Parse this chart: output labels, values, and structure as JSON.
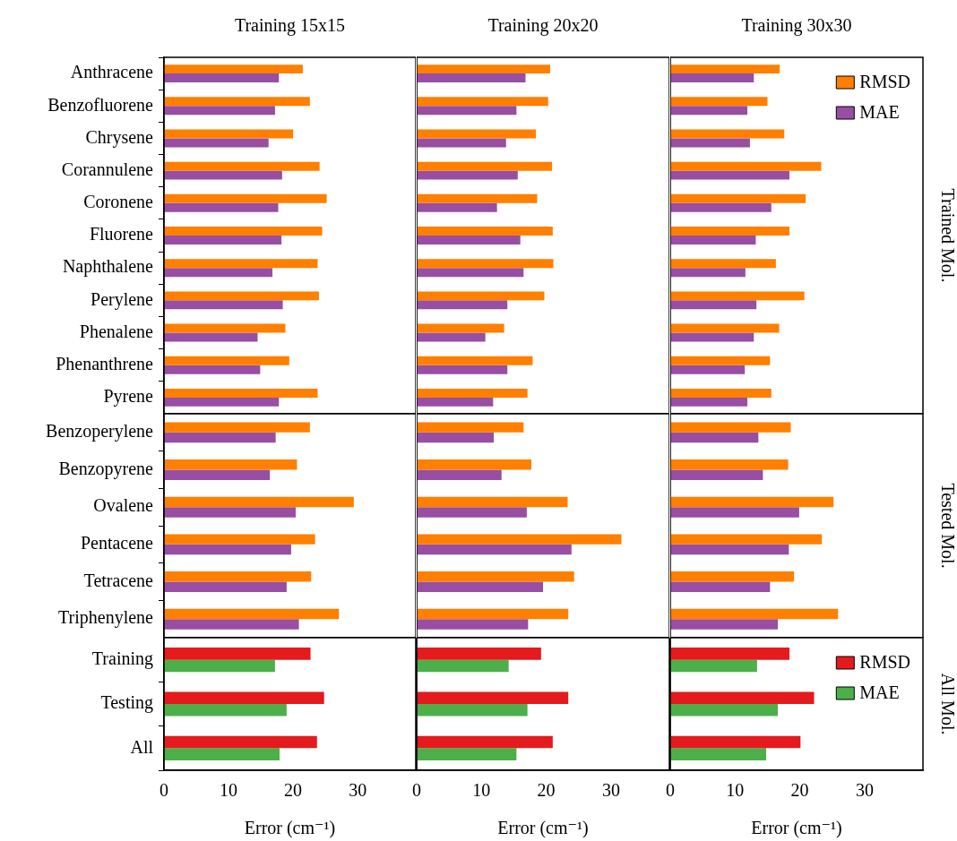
{
  "chart_data": [
    {
      "type": "bar",
      "orientation": "horizontal",
      "title": "Training 15x15",
      "categories": [
        "Anthracene",
        "Benzofluorene",
        "Chrysene",
        "Corannulene",
        "Coronene",
        "Fluorene",
        "Naphthalene",
        "Perylene",
        "Phenalene",
        "Phenanthrene",
        "Pyrene"
      ],
      "series": [
        {
          "color": "#ff7f00",
          "values": [
            21.5,
            22.6,
            20.0,
            24.1,
            25.2,
            24.5,
            23.8,
            24.0,
            18.8,
            19.4,
            23.8
          ]
        },
        {
          "color": "#984ea3",
          "values": [
            17.8,
            17.2,
            16.2,
            18.3,
            17.7,
            18.2,
            16.8,
            18.4,
            14.5,
            14.9,
            17.8
          ]
        }
      ],
      "xlim": [
        0,
        39
      ],
      "xticks": [
        0,
        10,
        20,
        30
      ],
      "tick_labels": "y"
    },
    {
      "type": "bar",
      "orientation": "horizontal",
      "title": "Training 20x20",
      "categories": [
        null,
        null,
        null,
        null,
        null,
        null,
        null,
        null,
        null,
        null,
        null
      ],
      "series": [
        {
          "color": "#ff7f00",
          "values": [
            20.6,
            20.3,
            18.4,
            20.9,
            18.6,
            21.0,
            21.1,
            19.7,
            13.5,
            17.9,
            17.1
          ]
        },
        {
          "color": "#984ea3",
          "values": [
            16.8,
            15.4,
            13.8,
            15.6,
            12.4,
            16.0,
            16.5,
            14.0,
            10.6,
            14.0,
            11.8
          ]
        }
      ],
      "xlim": [
        0,
        39
      ],
      "xticks": [
        0,
        10,
        20,
        30
      ],
      "tick_labels": false
    },
    {
      "type": "bar",
      "orientation": "horizontal",
      "title": "Training 30x30",
      "y2label": "Trained Mol.",
      "categories": [
        null,
        null,
        null,
        null,
        null,
        null,
        null,
        null,
        null,
        null,
        null
      ],
      "series": [
        {
          "name": "RMSD",
          "color": "#ff7f00",
          "values": [
            16.9,
            15.0,
            17.6,
            23.3,
            20.9,
            18.4,
            16.3,
            20.7,
            16.8,
            15.4,
            15.6
          ]
        },
        {
          "name": "MAE",
          "color": "#984ea3",
          "values": [
            12.9,
            11.9,
            12.3,
            18.4,
            15.6,
            13.2,
            11.6,
            13.3,
            12.9,
            11.5,
            11.9
          ]
        }
      ],
      "xlim": [
        0,
        39
      ],
      "xticks": [
        0,
        10,
        20,
        30
      ],
      "tick_labels": false,
      "legend": "top right"
    },
    {
      "type": "bar",
      "orientation": "horizontal",
      "categories": [
        "Benzoperylene",
        "Benzopyrene",
        "Ovalene",
        "Pentacene",
        "Tetracene",
        "Triphenylene"
      ],
      "series": [
        {
          "color": "#ff7f00",
          "values": [
            22.6,
            20.6,
            29.4,
            23.4,
            22.8,
            27.1
          ]
        },
        {
          "color": "#984ea3",
          "values": [
            17.3,
            16.4,
            20.4,
            19.7,
            19.0,
            20.9
          ]
        }
      ],
      "xlim": [
        0,
        39
      ],
      "xticks": [
        0,
        10,
        20,
        30
      ],
      "tick_labels": "y"
    },
    {
      "type": "bar",
      "orientation": "horizontal",
      "categories": [
        null,
        null,
        null,
        null,
        null,
        null
      ],
      "series": [
        {
          "color": "#ff7f00",
          "values": [
            16.5,
            17.7,
            23.3,
            31.6,
            24.3,
            23.4
          ]
        },
        {
          "color": "#984ea3",
          "values": [
            11.9,
            13.1,
            17.0,
            23.9,
            19.5,
            17.2
          ]
        }
      ],
      "xlim": [
        0,
        39
      ],
      "xticks": [
        0,
        10,
        20,
        30
      ],
      "tick_labels": false
    },
    {
      "type": "bar",
      "orientation": "horizontal",
      "y2label": "Tested Mol.",
      "categories": [
        null,
        null,
        null,
        null,
        null,
        null
      ],
      "series": [
        {
          "color": "#ff7f00",
          "values": [
            18.6,
            18.2,
            25.2,
            23.4,
            19.1,
            25.9
          ]
        },
        {
          "color": "#984ea3",
          "values": [
            13.6,
            14.3,
            19.9,
            18.3,
            15.4,
            16.6
          ]
        }
      ],
      "xlim": [
        0,
        39
      ],
      "xticks": [
        0,
        10,
        20,
        30
      ],
      "tick_labels": false
    },
    {
      "type": "bar",
      "orientation": "horizontal",
      "xlabel": "Error (cm⁻¹)",
      "categories": [
        "Training",
        "Testing",
        "All"
      ],
      "series": [
        {
          "color": "#e41a1c",
          "values": [
            22.7,
            24.8,
            23.7
          ]
        },
        {
          "color": "#4daf4a",
          "values": [
            17.2,
            19.0,
            17.9
          ]
        }
      ],
      "xlim": [
        0,
        39
      ],
      "xticks": [
        0,
        10,
        20,
        30
      ]
    },
    {
      "type": "bar",
      "orientation": "horizontal",
      "xlabel": "Error (cm⁻¹)",
      "categories": [
        null,
        null,
        null
      ],
      "series": [
        {
          "color": "#e41a1c",
          "values": [
            19.2,
            23.4,
            21.0
          ]
        },
        {
          "color": "#4daf4a",
          "values": [
            14.2,
            17.1,
            15.4
          ]
        }
      ],
      "xlim": [
        0,
        39
      ],
      "xticks": [
        0,
        10,
        20,
        30
      ],
      "tick_labels": "x"
    },
    {
      "type": "bar",
      "orientation": "horizontal",
      "xlabel": "Error (cm⁻¹)",
      "y2label": "All Mol.",
      "categories": [
        null,
        null,
        null
      ],
      "series": [
        {
          "name": "RMSD",
          "color": "#e41a1c",
          "values": [
            18.4,
            22.2,
            20.1
          ]
        },
        {
          "name": "MAE",
          "color": "#4daf4a",
          "values": [
            13.4,
            16.6,
            14.8
          ]
        }
      ],
      "xlim": [
        0,
        39
      ],
      "xticks": [
        0,
        10,
        20,
        30
      ],
      "tick_labels": "x",
      "legend": "top right"
    }
  ]
}
